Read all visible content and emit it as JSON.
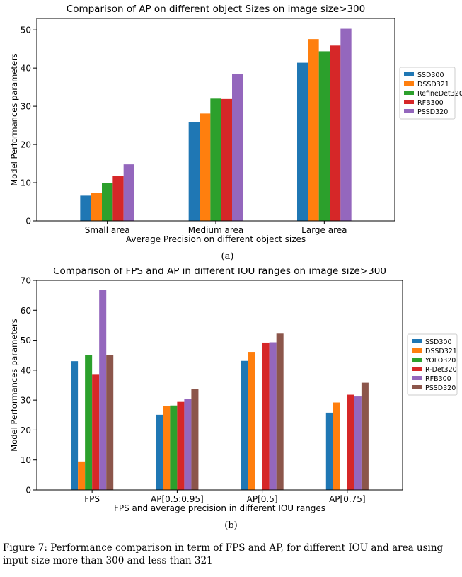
{
  "chart_data": [
    {
      "type": "bar",
      "title": "Comparison of AP on different object Sizes on image size>300",
      "xlabel": "Average Precision on different object sizes",
      "ylabel": "Model Performances parameters",
      "ylim": [
        0,
        53
      ],
      "yticks": [
        0,
        10,
        20,
        30,
        40,
        50
      ],
      "categories": [
        "Small area",
        "Medium area",
        "Large area"
      ],
      "legend_position": "right",
      "series": [
        {
          "name": "SSD300",
          "color": "#1f77b4",
          "values": [
            6.6,
            25.9,
            41.4
          ]
        },
        {
          "name": "DSSD321",
          "color": "#ff7f0e",
          "values": [
            7.4,
            28.1,
            47.6
          ]
        },
        {
          "name": "RefineDet320",
          "color": "#2ca02c",
          "values": [
            10.0,
            32.0,
            44.4
          ]
        },
        {
          "name": "RFB300",
          "color": "#d62728",
          "values": [
            11.8,
            31.9,
            45.9
          ]
        },
        {
          "name": "PSSD320",
          "color": "#9467bd",
          "values": [
            14.8,
            38.5,
            50.3
          ]
        }
      ]
    },
    {
      "type": "bar",
      "title": "Comparison of FPS and AP in different IOU ranges on image size>300",
      "xlabel": "FPS and average precision in different IOU ranges",
      "ylabel": "Model Performances parameters",
      "ylim": [
        0,
        70
      ],
      "yticks": [
        0,
        10,
        20,
        30,
        40,
        50,
        60,
        70
      ],
      "categories": [
        "FPS",
        "AP[0.5:0.95]",
        "AP[0.5]",
        "AP[0.75]"
      ],
      "legend_position": "right",
      "series": [
        {
          "name": "SSD300",
          "color": "#1f77b4",
          "values": [
            43.0,
            25.1,
            43.1,
            25.8
          ]
        },
        {
          "name": "DSSD321",
          "color": "#ff7f0e",
          "values": [
            9.5,
            28.0,
            46.1,
            29.2
          ]
        },
        {
          "name": "YOLO320",
          "color": "#2ca02c",
          "values": [
            45.0,
            28.2,
            null,
            null
          ]
        },
        {
          "name": "R-Det320",
          "color": "#d62728",
          "values": [
            38.7,
            29.4,
            49.2,
            31.8
          ]
        },
        {
          "name": "RFB300",
          "color": "#9467bd",
          "values": [
            66.7,
            30.3,
            49.3,
            31.2
          ]
        },
        {
          "name": "PSSD320",
          "color": "#8c564b",
          "values": [
            45.0,
            33.8,
            52.2,
            35.8
          ]
        }
      ]
    }
  ],
  "sublabels": [
    "(a)",
    "(b)"
  ],
  "caption": "Figure 7: Performance comparison in term of FPS and AP, for different IOU and area using input size more than 300 and less than 321"
}
